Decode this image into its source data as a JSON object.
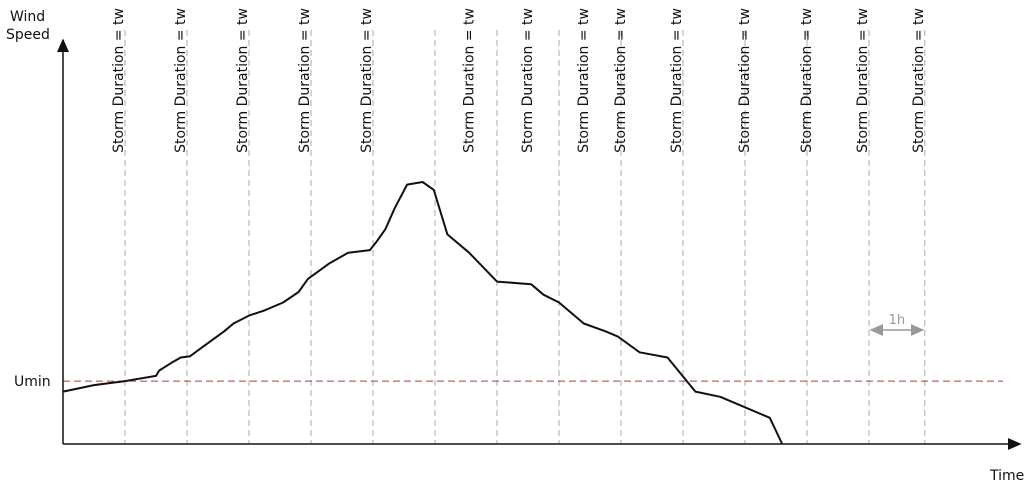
{
  "chart_data": {
    "type": "line",
    "title": "",
    "ylabel_lines": [
      "Wind",
      "Speed"
    ],
    "xlabel": "Time",
    "threshold": {
      "label": "Umin",
      "value": 0.24,
      "color": "#cc3333"
    },
    "window_label": "Storm Duration = tw",
    "window_lines_x": [
      1.0,
      2.0,
      3.0,
      4.0,
      5.0,
      6.0,
      7.0,
      8.0,
      9.0,
      10.0,
      11.0,
      12.0,
      13.0,
      13.9
    ],
    "label_lines_x": [
      1.0,
      2.0,
      3.0,
      4.0,
      5.0,
      6.65,
      7.6,
      8.5,
      9.1,
      10.0,
      11.1,
      12.1,
      13.0,
      13.9
    ],
    "window_line_color": "#aaaaaa",
    "interval_annotation": {
      "label": "1h",
      "from": 13.0,
      "to": 13.9
    },
    "xlim": [
      0,
      15.5
    ],
    "ylim": [
      0,
      1.38
    ],
    "series": [
      {
        "color": "#111111",
        "x": [
          0,
          0.5,
          1.0,
          1.5,
          1.55,
          1.75,
          1.9,
          2.05,
          2.25,
          2.6,
          2.75,
          3.0,
          3.25,
          3.55,
          3.8,
          3.95,
          4.3,
          4.6,
          4.95,
          5.05,
          5.2,
          5.35,
          5.55,
          5.8,
          5.98,
          6.2,
          6.55,
          7.0,
          7.55,
          7.75,
          8.0,
          8.4,
          8.75,
          8.95,
          9.3,
          9.75,
          10.2,
          10.6,
          11.0,
          11.4,
          11.6
        ],
        "values": [
          0.2,
          0.225,
          0.24,
          0.26,
          0.28,
          0.31,
          0.33,
          0.335,
          0.37,
          0.43,
          0.46,
          0.49,
          0.51,
          0.54,
          0.58,
          0.63,
          0.69,
          0.73,
          0.74,
          0.77,
          0.82,
          0.9,
          0.99,
          1.0,
          0.97,
          0.8,
          0.73,
          0.62,
          0.61,
          0.57,
          0.54,
          0.46,
          0.43,
          0.41,
          0.35,
          0.33,
          0.2,
          0.18,
          0.14,
          0.1,
          0.0
        ]
      }
    ]
  }
}
